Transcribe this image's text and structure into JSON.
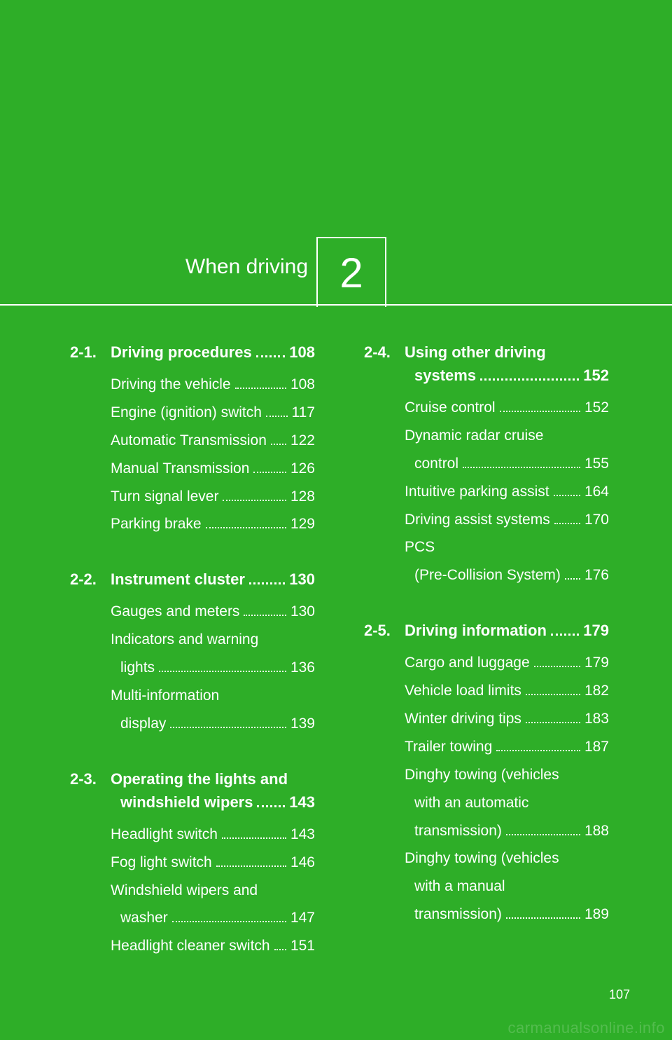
{
  "chapter": {
    "number": "2",
    "title": "When driving"
  },
  "page_number": "107",
  "watermark": "carmanualsonline.info",
  "colors": {
    "bg": "#2eae28",
    "text": "#ffffff"
  },
  "columns": [
    {
      "sections": [
        {
          "num": "2-1.",
          "title_lines": [
            "Driving procedures"
          ],
          "page": "108",
          "entries": [
            {
              "lines": [
                "Driving the vehicle"
              ],
              "page": "108"
            },
            {
              "lines": [
                "Engine (ignition) switch"
              ],
              "page": "117"
            },
            {
              "lines": [
                "Automatic Transmission"
              ],
              "page": "122"
            },
            {
              "lines": [
                "Manual Transmission"
              ],
              "page": "126"
            },
            {
              "lines": [
                "Turn signal lever"
              ],
              "page": "128"
            },
            {
              "lines": [
                "Parking brake"
              ],
              "page": "129"
            }
          ]
        },
        {
          "num": "2-2.",
          "title_lines": [
            "Instrument cluster"
          ],
          "page": "130",
          "entries": [
            {
              "lines": [
                "Gauges and meters"
              ],
              "page": "130"
            },
            {
              "lines": [
                "Indicators and warning",
                "lights"
              ],
              "page": "136"
            },
            {
              "lines": [
                "Multi-information",
                "display"
              ],
              "page": "139"
            }
          ]
        },
        {
          "num": "2-3.",
          "title_lines": [
            "Operating the lights and",
            "windshield wipers"
          ],
          "page": "143",
          "entries": [
            {
              "lines": [
                "Headlight switch"
              ],
              "page": "143"
            },
            {
              "lines": [
                "Fog light switch"
              ],
              "page": "146"
            },
            {
              "lines": [
                "Windshield wipers and",
                "washer"
              ],
              "page": "147"
            },
            {
              "lines": [
                "Headlight cleaner switch"
              ],
              "page": "151"
            }
          ]
        }
      ]
    },
    {
      "sections": [
        {
          "num": "2-4.",
          "title_lines": [
            "Using other driving",
            "systems"
          ],
          "page": "152",
          "entries": [
            {
              "lines": [
                "Cruise control"
              ],
              "page": "152"
            },
            {
              "lines": [
                "Dynamic radar cruise",
                "control"
              ],
              "page": "155"
            },
            {
              "lines": [
                "Intuitive parking assist"
              ],
              "page": "164"
            },
            {
              "lines": [
                "Driving assist systems"
              ],
              "page": "170"
            },
            {
              "lines": [
                "PCS",
                "(Pre-Collision System)"
              ],
              "page": "176"
            }
          ]
        },
        {
          "num": "2-5.",
          "title_lines": [
            "Driving information"
          ],
          "page": "179",
          "entries": [
            {
              "lines": [
                "Cargo and luggage"
              ],
              "page": "179"
            },
            {
              "lines": [
                "Vehicle load limits"
              ],
              "page": "182"
            },
            {
              "lines": [
                "Winter driving tips"
              ],
              "page": "183"
            },
            {
              "lines": [
                "Trailer towing"
              ],
              "page": "187"
            },
            {
              "lines": [
                "Dinghy towing (vehicles",
                "with an automatic",
                "transmission)"
              ],
              "page": "188"
            },
            {
              "lines": [
                "Dinghy towing (vehicles",
                "with a manual",
                "transmission)"
              ],
              "page": "189"
            }
          ]
        }
      ]
    }
  ]
}
